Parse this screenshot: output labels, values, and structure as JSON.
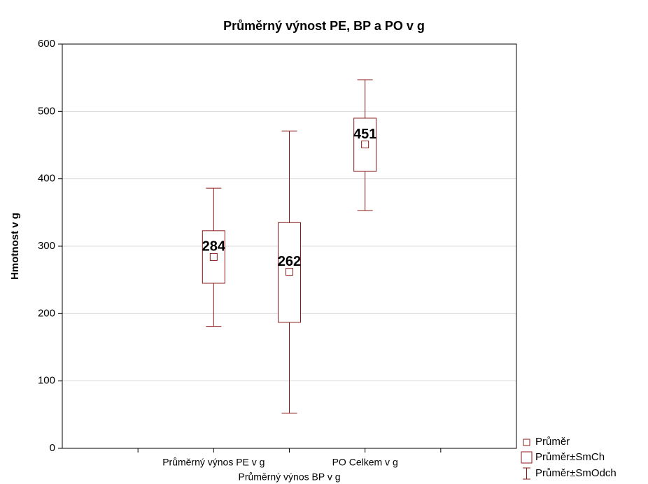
{
  "chart_data": {
    "type": "box",
    "title": "Průměrný výnost PE, BP a PO v g",
    "ylabel": "Hmotnost v g",
    "categories": [
      "Průměrný výnos PE v g",
      "Průměrný výnos BP v g",
      "PO Celkem v g"
    ],
    "mean": [
      284,
      262,
      451
    ],
    "se_low": [
      245,
      187,
      411
    ],
    "se_high": [
      323,
      335,
      490
    ],
    "sd_low": [
      181,
      52,
      353
    ],
    "sd_high": [
      386,
      471,
      547
    ],
    "color": "#8b1a1a",
    "ylim": [
      0,
      600
    ],
    "yticks": [
      0,
      100,
      200,
      300,
      400,
      500,
      600
    ],
    "grid": true,
    "legend": [
      "Průměr",
      "Průměr±SmCh",
      "Průměr±SmOdch"
    ],
    "legend_position": "lower right"
  }
}
